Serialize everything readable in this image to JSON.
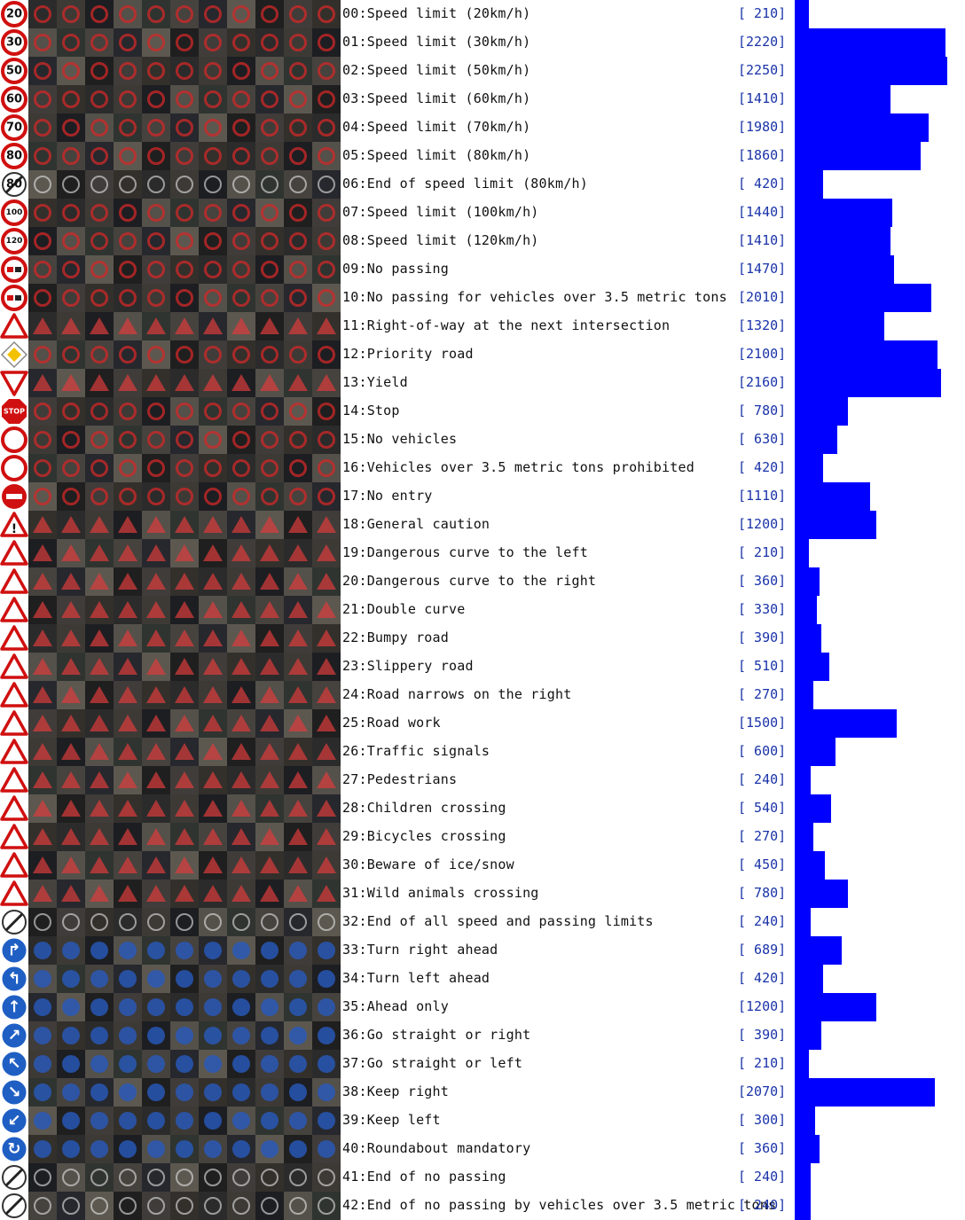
{
  "chart_data": {
    "type": "bar",
    "orientation": "horizontal",
    "title": "",
    "xlabel": "",
    "ylabel": "",
    "xlim": [
      0,
      2250
    ],
    "bar_color": "#0000ff",
    "rows": [
      {
        "label": "00:Speed limit (20km/h)",
        "count_text": "[ 210]",
        "value": 210,
        "icon": "speed",
        "sign_text": "20"
      },
      {
        "label": "01:Speed limit (30km/h)",
        "count_text": "[2220]",
        "value": 2220,
        "icon": "speed",
        "sign_text": "30"
      },
      {
        "label": "02:Speed limit (50km/h)",
        "count_text": "[2250]",
        "value": 2250,
        "icon": "speed",
        "sign_text": "50"
      },
      {
        "label": "03:Speed limit (60km/h)",
        "count_text": "[1410]",
        "value": 1410,
        "icon": "speed",
        "sign_text": "60"
      },
      {
        "label": "04:Speed limit (70km/h)",
        "count_text": "[1980]",
        "value": 1980,
        "icon": "speed",
        "sign_text": "70"
      },
      {
        "label": "05:Speed limit (80km/h)",
        "count_text": "[1860]",
        "value": 1860,
        "icon": "speed",
        "sign_text": "80"
      },
      {
        "label": "06:End of speed limit (80km/h)",
        "count_text": "[ 420]",
        "value": 420,
        "icon": "end",
        "sign_text": "80"
      },
      {
        "label": "07:Speed limit (100km/h)",
        "count_text": "[1440]",
        "value": 1440,
        "icon": "speed",
        "sign_text": "100"
      },
      {
        "label": "08:Speed limit (120km/h)",
        "count_text": "[1410]",
        "value": 1410,
        "icon": "speed",
        "sign_text": "120"
      },
      {
        "label": "09:No passing",
        "count_text": "[1470]",
        "value": 1470,
        "icon": "nopass",
        "sign_text": ""
      },
      {
        "label": "10:No passing for vehicles over 3.5 metric tons",
        "count_text": "[2010]",
        "value": 2010,
        "icon": "nopass",
        "sign_text": ""
      },
      {
        "label": "11:Right-of-way at the next intersection",
        "count_text": "[1320]",
        "value": 1320,
        "icon": "warn",
        "sign_text": ""
      },
      {
        "label": "12:Priority road",
        "count_text": "[2100]",
        "value": 2100,
        "icon": "priority",
        "sign_text": ""
      },
      {
        "label": "13:Yield",
        "count_text": "[2160]",
        "value": 2160,
        "icon": "yield",
        "sign_text": ""
      },
      {
        "label": "14:Stop",
        "count_text": "[ 780]",
        "value": 780,
        "icon": "stop",
        "sign_text": "STOP"
      },
      {
        "label": "15:No vehicles",
        "count_text": "[ 630]",
        "value": 630,
        "icon": "ring",
        "sign_text": ""
      },
      {
        "label": "16:Vehicles over 3.5 metric tons prohibited",
        "count_text": "[ 420]",
        "value": 420,
        "icon": "ring",
        "sign_text": ""
      },
      {
        "label": "17:No entry",
        "count_text": "[1110]",
        "value": 1110,
        "icon": "noentry",
        "sign_text": ""
      },
      {
        "label": "18:General caution",
        "count_text": "[1200]",
        "value": 1200,
        "icon": "warn",
        "sign_text": "!"
      },
      {
        "label": "19:Dangerous curve to the left",
        "count_text": "[ 210]",
        "value": 210,
        "icon": "warn",
        "sign_text": ""
      },
      {
        "label": "20:Dangerous curve to the right",
        "count_text": "[ 360]",
        "value": 360,
        "icon": "warn",
        "sign_text": ""
      },
      {
        "label": "21:Double curve",
        "count_text": "[ 330]",
        "value": 330,
        "icon": "warn",
        "sign_text": ""
      },
      {
        "label": "22:Bumpy road",
        "count_text": "[ 390]",
        "value": 390,
        "icon": "warn",
        "sign_text": ""
      },
      {
        "label": "23:Slippery road",
        "count_text": "[ 510]",
        "value": 510,
        "icon": "warn",
        "sign_text": ""
      },
      {
        "label": "24:Road narrows on the right",
        "count_text": "[ 270]",
        "value": 270,
        "icon": "warn",
        "sign_text": ""
      },
      {
        "label": "25:Road work",
        "count_text": "[1500]",
        "value": 1500,
        "icon": "warn",
        "sign_text": ""
      },
      {
        "label": "26:Traffic signals",
        "count_text": "[ 600]",
        "value": 600,
        "icon": "warn",
        "sign_text": ""
      },
      {
        "label": "27:Pedestrians",
        "count_text": "[ 240]",
        "value": 240,
        "icon": "warn",
        "sign_text": ""
      },
      {
        "label": "28:Children crossing",
        "count_text": "[ 540]",
        "value": 540,
        "icon": "warn",
        "sign_text": ""
      },
      {
        "label": "29:Bicycles crossing",
        "count_text": "[ 270]",
        "value": 270,
        "icon": "warn",
        "sign_text": ""
      },
      {
        "label": "30:Beware of ice/snow",
        "count_text": "[ 450]",
        "value": 450,
        "icon": "warn",
        "sign_text": ""
      },
      {
        "label": "31:Wild animals crossing",
        "count_text": "[ 780]",
        "value": 780,
        "icon": "warn",
        "sign_text": ""
      },
      {
        "label": "32:End of all speed and passing limits",
        "count_text": "[ 240]",
        "value": 240,
        "icon": "end",
        "sign_text": ""
      },
      {
        "label": "33:Turn right ahead",
        "count_text": "[ 689]",
        "value": 689,
        "icon": "blue",
        "sign_text": "↱"
      },
      {
        "label": "34:Turn left ahead",
        "count_text": "[ 420]",
        "value": 420,
        "icon": "blue",
        "sign_text": "↰"
      },
      {
        "label": "35:Ahead only",
        "count_text": "[1200]",
        "value": 1200,
        "icon": "blue",
        "sign_text": "↑"
      },
      {
        "label": "36:Go straight or right",
        "count_text": "[ 390]",
        "value": 390,
        "icon": "blue",
        "sign_text": "↗"
      },
      {
        "label": "37:Go straight or left",
        "count_text": "[ 210]",
        "value": 210,
        "icon": "blue",
        "sign_text": "↖"
      },
      {
        "label": "38:Keep right",
        "count_text": "[2070]",
        "value": 2070,
        "icon": "blue",
        "sign_text": "↘"
      },
      {
        "label": "39:Keep left",
        "count_text": "[ 300]",
        "value": 300,
        "icon": "blue",
        "sign_text": "↙"
      },
      {
        "label": "40:Roundabout mandatory",
        "count_text": "[ 360]",
        "value": 360,
        "icon": "blue",
        "sign_text": "↻"
      },
      {
        "label": "41:End of no passing",
        "count_text": "[ 240]",
        "value": 240,
        "icon": "end",
        "sign_text": ""
      },
      {
        "label": "42:End of no passing by vehicles over 3.5 metric tons",
        "count_text": "[ 240]",
        "value": 240,
        "icon": "end",
        "sign_text": ""
      }
    ]
  }
}
